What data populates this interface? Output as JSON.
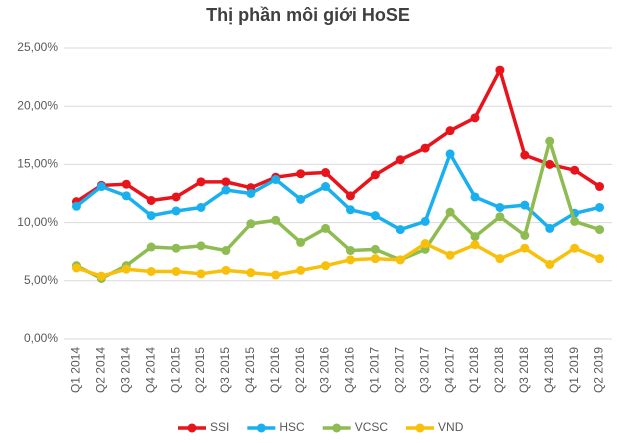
{
  "chart_data": {
    "type": "line",
    "title": "Thị phần môi giới HoSE",
    "categories": [
      "Q1 2014",
      "Q2 2014",
      "Q3 2014",
      "Q4 2014",
      "Q1 2015",
      "Q2 2015",
      "Q3 2015",
      "Q4 2015",
      "Q1 2016",
      "Q2 2016",
      "Q3 2016",
      "Q4 2016",
      "Q1 2017",
      "Q2 2017",
      "Q3 2017",
      "Q4 2017",
      "Q1 2018",
      "Q2 2018",
      "Q3 2018",
      "Q4 2018",
      "Q1 2019",
      "Q2 2019"
    ],
    "series": [
      {
        "name": "SSI",
        "color": "#e8141b",
        "values": [
          11.8,
          13.2,
          13.3,
          11.9,
          12.2,
          13.5,
          13.5,
          13.0,
          13.9,
          14.2,
          14.3,
          12.3,
          14.1,
          15.4,
          16.4,
          17.9,
          19.0,
          23.1,
          15.8,
          15.0,
          14.5,
          13.1
        ]
      },
      {
        "name": "HSC",
        "color": "#1ab0ef",
        "values": [
          11.4,
          13.1,
          12.3,
          10.6,
          11.0,
          11.3,
          12.8,
          12.5,
          13.7,
          12.0,
          13.1,
          11.1,
          10.6,
          9.4,
          10.1,
          15.9,
          12.2,
          11.3,
          11.5,
          9.5,
          10.8,
          11.3
        ]
      },
      {
        "name": "VCSC",
        "color": "#8fbc52",
        "values": [
          6.3,
          5.2,
          6.3,
          7.9,
          7.8,
          8.0,
          7.6,
          9.9,
          10.2,
          8.3,
          9.5,
          7.6,
          7.7,
          6.8,
          7.7,
          10.9,
          8.8,
          10.5,
          8.9,
          17.0,
          10.1,
          9.4
        ]
      },
      {
        "name": "VND",
        "color": "#f9c00b",
        "values": [
          6.1,
          5.4,
          6.0,
          5.8,
          5.8,
          5.6,
          5.9,
          5.7,
          5.5,
          5.9,
          6.3,
          6.8,
          6.9,
          6.8,
          8.2,
          7.2,
          8.1,
          6.9,
          7.8,
          6.4,
          7.8,
          6.9
        ]
      }
    ],
    "ylim": [
      0,
      25
    ],
    "yticks": [
      {
        "value": 0,
        "label": "0,00%"
      },
      {
        "value": 5,
        "label": "5,00%"
      },
      {
        "value": 10,
        "label": "10,00%"
      },
      {
        "value": 15,
        "label": "15,00%"
      },
      {
        "value": 20,
        "label": "20,00%"
      },
      {
        "value": 25,
        "label": "25,00%"
      }
    ],
    "grid": true,
    "legend": "bottom"
  }
}
